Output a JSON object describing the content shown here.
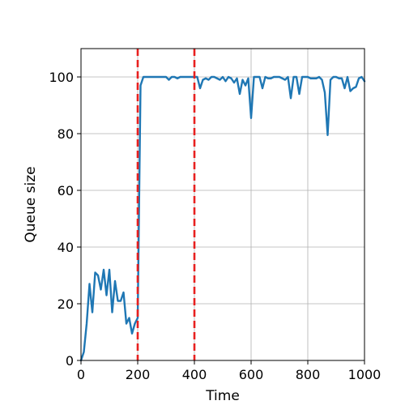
{
  "chart_data": {
    "type": "line",
    "title": "",
    "xlabel": "Time",
    "ylabel": "Queue size",
    "xlim": [
      0,
      1000
    ],
    "ylim": [
      0,
      110
    ],
    "xticks": [
      0,
      200,
      400,
      600,
      800,
      1000
    ],
    "yticks": [
      0,
      20,
      40,
      60,
      80,
      100
    ],
    "grid": true,
    "legend": "none",
    "series": [
      {
        "color": "#1f77b4",
        "x": [
          0,
          10,
          20,
          30,
          40,
          50,
          60,
          70,
          80,
          90,
          100,
          110,
          120,
          130,
          140,
          150,
          160,
          170,
          180,
          190,
          200,
          210,
          220,
          230,
          240,
          250,
          260,
          270,
          280,
          290,
          300,
          310,
          320,
          330,
          340,
          350,
          360,
          370,
          380,
          390,
          400,
          410,
          420,
          430,
          440,
          450,
          460,
          470,
          480,
          490,
          500,
          510,
          520,
          530,
          540,
          550,
          560,
          570,
          580,
          590,
          600,
          610,
          620,
          630,
          640,
          650,
          660,
          670,
          680,
          690,
          700,
          710,
          720,
          730,
          740,
          750,
          760,
          770,
          780,
          790,
          800,
          810,
          820,
          830,
          840,
          850,
          860,
          870,
          880,
          890,
          900,
          910,
          920,
          930,
          940,
          950,
          960,
          970,
          980,
          990,
          1000
        ],
        "y": [
          0,
          3,
          13,
          27,
          17,
          31,
          30,
          25,
          32,
          23,
          32,
          17,
          28,
          21,
          21,
          24,
          13,
          15,
          9.5,
          13,
          15,
          97,
          100,
          100,
          100,
          100,
          100,
          100,
          100,
          100,
          100,
          99,
          100,
          100,
          99.5,
          100,
          100,
          100,
          100,
          100,
          100,
          100,
          96,
          99,
          99.5,
          99,
          100,
          100,
          99.5,
          99,
          100,
          98.5,
          100,
          99.5,
          98,
          99.5,
          94,
          99,
          97,
          99.5,
          85.5,
          100,
          100,
          100,
          96,
          100,
          99.5,
          99.5,
          100,
          100,
          100,
          99.5,
          99,
          100,
          92.5,
          100,
          100,
          94,
          100,
          100,
          100,
          99.5,
          99.5,
          99.5,
          100,
          99,
          94.5,
          79.5,
          99,
          100,
          100,
          99.5,
          99.5,
          96,
          100,
          95,
          96,
          96.5,
          99.5,
          100,
          98.5
        ]
      }
    ],
    "vlines": [
      {
        "x": 200,
        "color": "#e8201f",
        "style": "dashed"
      },
      {
        "x": 400,
        "color": "#e8201f",
        "style": "dashed"
      }
    ]
  }
}
